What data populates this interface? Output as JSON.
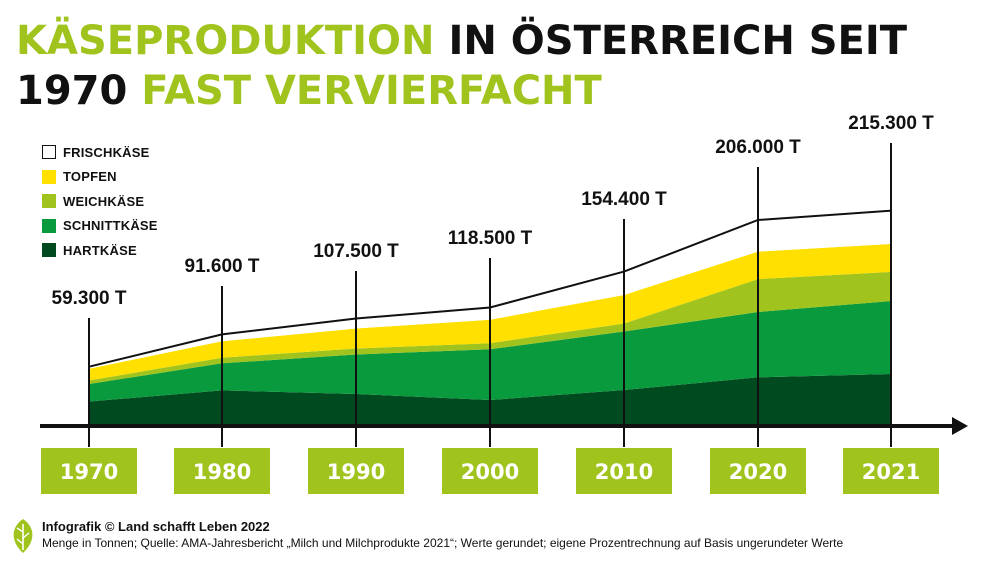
{
  "title": {
    "part1": "KÄSEPRODUKTION",
    "part2": " IN ÖSTERREICH SEIT",
    "part3": "1970",
    "part4": " FAST VERVIERFACHT"
  },
  "colors": {
    "accent_green": "#a0c41d",
    "frischkaese": "#ffffff",
    "topfen": "#ffe000",
    "weichkaese": "#a0c41d",
    "schnittkaese": "#0a9a3e",
    "hartkaese": "#004a1f",
    "text": "#111111"
  },
  "chart_data": {
    "type": "area",
    "stacked": true,
    "categories": [
      "1970",
      "1980",
      "1990",
      "2000",
      "2010",
      "2020",
      "2021"
    ],
    "totals_label": [
      "59.300 T",
      "91.600 T",
      "107.500 T",
      "118.500 T",
      "154.400 T",
      "206.000 T",
      "215.300 T"
    ],
    "totals": [
      59300,
      91600,
      107500,
      118500,
      154400,
      206000,
      215300
    ],
    "series": [
      {
        "name": "HARTKÄSE",
        "values": [
          24500,
          35600,
          32000,
          26000,
          36000,
          48700,
          52000
        ]
      },
      {
        "name": "SCHNITTKÄSE",
        "values": [
          17500,
          27100,
          39500,
          50800,
          58500,
          65300,
          73000
        ]
      },
      {
        "name": "WEICHKÄSE",
        "values": [
          3500,
          5600,
          6000,
          6000,
          8000,
          32900,
          29000
        ]
      },
      {
        "name": "TOPFEN",
        "values": [
          11800,
          16400,
          20000,
          23500,
          28500,
          27500,
          28000
        ]
      },
      {
        "name": "FRISCHKÄSE",
        "values": [
          2000,
          6900,
          10000,
          12200,
          23400,
          31600,
          33300
        ]
      }
    ],
    "unit": "Tonnen",
    "legend_position": "top-left",
    "grid": false
  },
  "legend": [
    {
      "label": "FRISCHKÄSE",
      "color": "#ffffff"
    },
    {
      "label": "TOPFEN",
      "color": "#ffe000"
    },
    {
      "label": "WEICHKÄSE",
      "color": "#a0c41d"
    },
    {
      "label": "SCHNITTKÄSE",
      "color": "#0a9a3e"
    },
    {
      "label": "HARTKÄSE",
      "color": "#004a1f"
    }
  ],
  "footer": {
    "credit": "Infografik © Land schafft Leben 2022",
    "source": "Menge in Tonnen; Quelle: AMA-Jahresbericht „Milch und Milchprodukte 2021“; Werte gerundet; eigene Prozentrechnung auf Basis ungerundeter Werte"
  }
}
